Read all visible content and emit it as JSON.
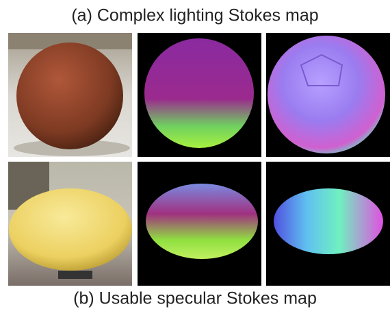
{
  "captions": {
    "top": "(a) Complex lighting Stokes map",
    "bottom": "(b) Usable specular Stokes map"
  }
}
